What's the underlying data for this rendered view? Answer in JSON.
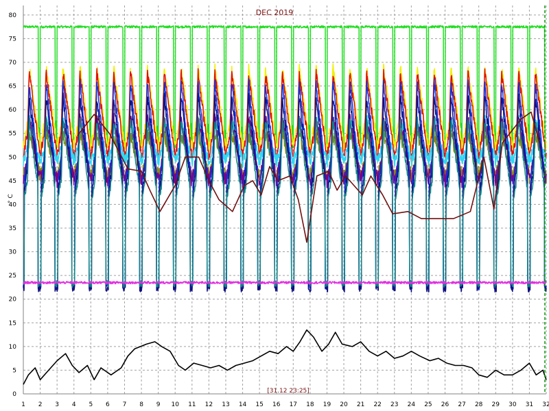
{
  "chart_data": {
    "type": "line",
    "title": "DEC 2019",
    "ylabel": "° C",
    "timestamp": "[31.12 23:25]",
    "xlim": [
      1,
      32
    ],
    "ylim": [
      0,
      82
    ],
    "x_ticks": [
      1,
      2,
      3,
      4,
      5,
      6,
      7,
      8,
      9,
      10,
      11,
      12,
      13,
      14,
      15,
      16,
      17,
      18,
      19,
      20,
      21,
      22,
      23,
      24,
      25,
      26,
      27,
      28,
      29,
      30,
      31,
      32
    ],
    "y_ticks": [
      0,
      5,
      10,
      15,
      20,
      25,
      30,
      35,
      40,
      45,
      50,
      55,
      60,
      65,
      70,
      75,
      80
    ],
    "grid": true,
    "colors": {
      "grid": "#a0a0a0",
      "cursor": "#009900",
      "green": "#22dd22",
      "yellow": "#f0f000",
      "red": "#e01010",
      "blue": "#1030e0",
      "navy": "#101080",
      "cyan": "#30d8f0",
      "olive": "#8a8a10",
      "purple": "#800080",
      "teal": "#108888",
      "magenta": "#e030e0",
      "brown": "#701010",
      "black": "#000000"
    },
    "series": [
      {
        "key": "green",
        "color": "green",
        "base": 77.5,
        "dip_to": 52,
        "amp": 0.8
      },
      {
        "key": "yellow",
        "color": "yellow",
        "base": 52,
        "peak": 69,
        "amp": 2.0
      },
      {
        "key": "red",
        "color": "red",
        "base": 50,
        "peak": 68,
        "amp": 2.0
      },
      {
        "key": "cyan",
        "color": "cyan",
        "base": 49,
        "peak": 58,
        "amp": 2.5
      },
      {
        "key": "olive",
        "color": "olive",
        "base": 46,
        "peak": 55,
        "amp": 3.0
      },
      {
        "key": "purple",
        "color": "purple",
        "base": 45,
        "peak": 58,
        "amp": 3.0
      },
      {
        "key": "blue",
        "color": "blue",
        "base": 43,
        "peak": 66,
        "low": 22,
        "amp": 2.0
      },
      {
        "key": "navy",
        "color": "navy",
        "base": 41,
        "peak": 63,
        "low": 21.5,
        "amp": 2.0
      },
      {
        "key": "teal",
        "color": "teal",
        "base": 40,
        "peak": 58,
        "low": 22.5,
        "amp": 1.5
      },
      {
        "key": "magenta",
        "color": "magenta",
        "base": 23.5,
        "amp": 0.5
      },
      {
        "key": "brown",
        "color": "brown",
        "points": [
          [
            4.2,
            54.5
          ],
          [
            5.2,
            59
          ],
          [
            6.1,
            55
          ],
          [
            7.2,
            47.5
          ],
          [
            8.0,
            47
          ],
          [
            8.5,
            43
          ],
          [
            9.1,
            38.5
          ],
          [
            10.0,
            44
          ],
          [
            10.6,
            50
          ],
          [
            11.4,
            50
          ],
          [
            12.0,
            45
          ],
          [
            12.6,
            41
          ],
          [
            13.4,
            38.5
          ],
          [
            14.1,
            44
          ],
          [
            14.6,
            45
          ],
          [
            15.1,
            42
          ],
          [
            15.6,
            48
          ],
          [
            16.1,
            45
          ],
          [
            16.8,
            46
          ],
          [
            17.3,
            41
          ],
          [
            17.8,
            32
          ],
          [
            18.4,
            46
          ],
          [
            19.1,
            47
          ],
          [
            19.6,
            43
          ],
          [
            20.1,
            46
          ],
          [
            21.1,
            42
          ],
          [
            21.6,
            46
          ],
          [
            22.3,
            42
          ],
          [
            22.9,
            38
          ],
          [
            23.8,
            38.5
          ],
          [
            24.6,
            37
          ],
          [
            25.5,
            37
          ],
          [
            26.5,
            37
          ],
          [
            27.5,
            38.5
          ],
          [
            28.3,
            50
          ],
          [
            28.9,
            39
          ],
          [
            29.4,
            53
          ],
          [
            30.5,
            58
          ],
          [
            31.1,
            59.5
          ],
          [
            31.6,
            53
          ]
        ]
      },
      {
        "key": "black",
        "color": "black",
        "points": [
          [
            1.0,
            2
          ],
          [
            1.3,
            4
          ],
          [
            1.7,
            5.5
          ],
          [
            2.0,
            3
          ],
          [
            2.5,
            5
          ],
          [
            3.0,
            7
          ],
          [
            3.5,
            8.5
          ],
          [
            3.9,
            6
          ],
          [
            4.3,
            4.5
          ],
          [
            4.8,
            6
          ],
          [
            5.2,
            3
          ],
          [
            5.6,
            5.5
          ],
          [
            6.2,
            4
          ],
          [
            6.8,
            5.5
          ],
          [
            7.2,
            8
          ],
          [
            7.6,
            9.5
          ],
          [
            8.3,
            10.5
          ],
          [
            8.8,
            11
          ],
          [
            9.2,
            10
          ],
          [
            9.7,
            9
          ],
          [
            10.2,
            6
          ],
          [
            10.6,
            5
          ],
          [
            11.1,
            6.5
          ],
          [
            11.6,
            6
          ],
          [
            12.1,
            5.5
          ],
          [
            12.6,
            6
          ],
          [
            13.1,
            5
          ],
          [
            13.6,
            6
          ],
          [
            14.1,
            6.5
          ],
          [
            14.6,
            7
          ],
          [
            15.1,
            8
          ],
          [
            15.6,
            9
          ],
          [
            16.1,
            8.5
          ],
          [
            16.6,
            10
          ],
          [
            17.0,
            9
          ],
          [
            17.4,
            11
          ],
          [
            17.8,
            13.5
          ],
          [
            18.2,
            12
          ],
          [
            18.7,
            9
          ],
          [
            19.1,
            10.5
          ],
          [
            19.5,
            13
          ],
          [
            19.9,
            10.5
          ],
          [
            20.5,
            10
          ],
          [
            21.0,
            11
          ],
          [
            21.5,
            9
          ],
          [
            22.0,
            8
          ],
          [
            22.5,
            9
          ],
          [
            23.0,
            7.5
          ],
          [
            23.5,
            8
          ],
          [
            24.0,
            9
          ],
          [
            24.5,
            8
          ],
          [
            25.1,
            7
          ],
          [
            25.6,
            7.5
          ],
          [
            26.1,
            6.5
          ],
          [
            26.6,
            6
          ],
          [
            27.1,
            6
          ],
          [
            27.6,
            5.5
          ],
          [
            28.0,
            4
          ],
          [
            28.5,
            3.5
          ],
          [
            29.0,
            5
          ],
          [
            29.5,
            4
          ],
          [
            30.0,
            4
          ],
          [
            30.5,
            5
          ],
          [
            31.0,
            6.5
          ],
          [
            31.4,
            4
          ],
          [
            31.8,
            5
          ],
          [
            32.0,
            3
          ]
        ]
      }
    ]
  }
}
